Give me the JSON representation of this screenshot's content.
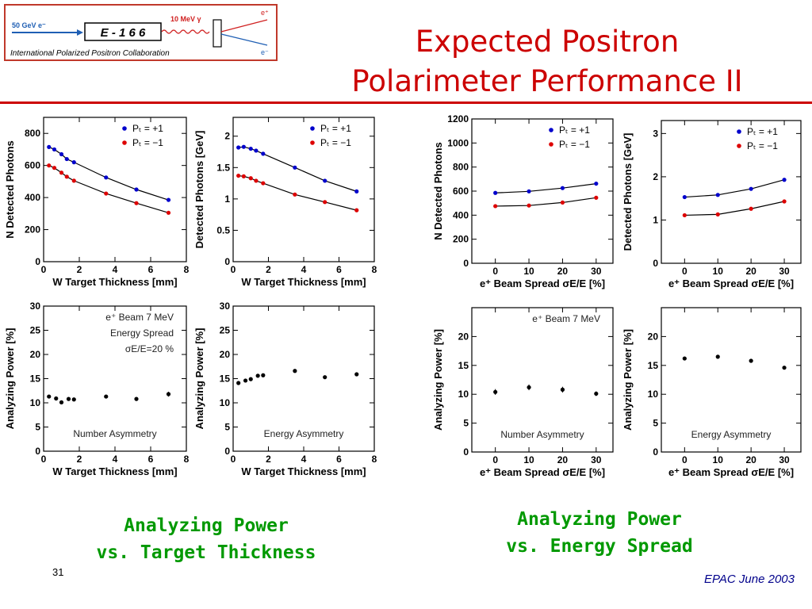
{
  "logo": {
    "beam_label": "50 GeV e⁻",
    "experiment": "E - 1 6 6",
    "gamma_label": "10 MeV γ",
    "e_plus": "e⁺",
    "e_minus": "e⁻",
    "collaboration": "International Polarized Positron Collaboration",
    "border_color": "#c0392b",
    "beam_color": "#1f5fb4",
    "wave_color": "#d02020"
  },
  "title": {
    "line1": "Expected Positron",
    "line2": "Polarimeter Performance II"
  },
  "captions": {
    "left_line1": "Analyzing Power",
    "left_line2": "vs. Target Thickness",
    "right_line1": "Analyzing Power",
    "right_line2": "vs. Energy Spread"
  },
  "footer": {
    "slide_number": "31",
    "reference": "EPAC June 2003"
  },
  "colors": {
    "title": "#cc0000",
    "caption": "#009900",
    "pos_series": "#0000cc",
    "neg_series": "#dd0000"
  },
  "chart_data": [
    {
      "id": "p1",
      "type": "line",
      "xlabel": "W Target Thickness [mm]",
      "ylabel": "N Detected Photons",
      "xlim": [
        0,
        8
      ],
      "ylim": [
        0,
        900
      ],
      "xticks": [
        0,
        2,
        4,
        6,
        8
      ],
      "yticks": [
        0,
        200,
        400,
        600,
        800
      ],
      "legend_position": "top-right",
      "series": [
        {
          "name": "Pₜ = +1",
          "color": "#0000cc",
          "x": [
            0.3,
            0.6,
            1.0,
            1.3,
            1.7,
            3.5,
            5.2,
            7.0
          ],
          "values": [
            715,
            700,
            670,
            640,
            620,
            525,
            450,
            385
          ]
        },
        {
          "name": "Pₜ = −1",
          "color": "#dd0000",
          "x": [
            0.3,
            0.6,
            1.0,
            1.3,
            1.7,
            3.5,
            5.2,
            7.0
          ],
          "values": [
            600,
            585,
            555,
            530,
            505,
            425,
            365,
            305
          ]
        }
      ]
    },
    {
      "id": "p2",
      "type": "line",
      "xlabel": "W Target Thickness [mm]",
      "ylabel": "Detected Photons [GeV]",
      "xlim": [
        0,
        8
      ],
      "ylim": [
        0,
        2.3
      ],
      "xticks": [
        0,
        2,
        4,
        6,
        8
      ],
      "yticks": [
        0,
        0.5,
        1,
        1.5,
        2
      ],
      "legend_position": "top-right",
      "series": [
        {
          "name": "Pₜ = +1",
          "color": "#0000cc",
          "x": [
            0.3,
            0.6,
            1.0,
            1.3,
            1.7,
            3.5,
            5.2,
            7.0
          ],
          "values": [
            1.82,
            1.83,
            1.8,
            1.77,
            1.72,
            1.5,
            1.29,
            1.12
          ]
        },
        {
          "name": "Pₜ = −1",
          "color": "#dd0000",
          "x": [
            0.3,
            0.6,
            1.0,
            1.3,
            1.7,
            3.5,
            5.2,
            7.0
          ],
          "values": [
            1.37,
            1.36,
            1.33,
            1.29,
            1.25,
            1.07,
            0.95,
            0.82
          ]
        }
      ]
    },
    {
      "id": "p3",
      "type": "line",
      "xlabel": "e⁺ Beam Spread σE/E [%]",
      "ylabel": "N Detected Photons",
      "xlim": [
        -7,
        35
      ],
      "ylim": [
        0,
        1200
      ],
      "xticks": [
        0,
        10,
        20,
        30
      ],
      "yticks": [
        0,
        200,
        400,
        600,
        800,
        1000,
        1200
      ],
      "legend_position": "top-right",
      "series": [
        {
          "name": "Pₜ = +1",
          "color": "#0000cc",
          "x": [
            0,
            10,
            20,
            30
          ],
          "values": [
            585,
            598,
            625,
            662
          ]
        },
        {
          "name": "Pₜ = −1",
          "color": "#dd0000",
          "x": [
            0,
            10,
            20,
            30
          ],
          "values": [
            475,
            480,
            505,
            545
          ]
        }
      ]
    },
    {
      "id": "p4",
      "type": "line",
      "xlabel": "e⁺ Beam Spread σE/E [%]",
      "ylabel": "Detected Photons [GeV]",
      "xlim": [
        -7,
        35
      ],
      "ylim": [
        0,
        3.3
      ],
      "xticks": [
        0,
        10,
        20,
        30
      ],
      "yticks": [
        0,
        1,
        2,
        3
      ],
      "legend_position": "top-right",
      "series": [
        {
          "name": "Pₜ = +1",
          "color": "#0000cc",
          "x": [
            0,
            10,
            20,
            30
          ],
          "values": [
            1.53,
            1.58,
            1.72,
            1.93
          ]
        },
        {
          "name": "Pₜ = −1",
          "color": "#dd0000",
          "x": [
            0,
            10,
            20,
            30
          ],
          "values": [
            1.11,
            1.13,
            1.26,
            1.43
          ]
        }
      ]
    },
    {
      "id": "p5",
      "type": "scatter",
      "xlabel": "W Target Thickness [mm]",
      "ylabel": "Analyzing Power [%]",
      "xlim": [
        0,
        8
      ],
      "ylim": [
        0,
        30
      ],
      "xticks": [
        0,
        2,
        4,
        6,
        8
      ],
      "yticks": [
        0,
        5,
        10,
        15,
        20,
        25,
        30
      ],
      "annotations": [
        "e⁺ Beam 7 MeV",
        "Energy Spread",
        "σE/E=20 %"
      ],
      "footnote": "Number Asymmetry",
      "series": [
        {
          "name": "",
          "color": "#000000",
          "x": [
            0.3,
            0.7,
            1.0,
            1.4,
            1.7,
            3.5,
            5.2,
            7.0
          ],
          "values": [
            11.3,
            10.9,
            10.1,
            10.8,
            10.7,
            11.3,
            10.8,
            11.8
          ],
          "errors": [
            0.3,
            0.3,
            0.3,
            0.3,
            0.3,
            0.3,
            0.4,
            0.5
          ]
        }
      ]
    },
    {
      "id": "p6",
      "type": "scatter",
      "xlabel": "W Target Thickness [mm]",
      "ylabel": "Analyzing Power [%]",
      "xlim": [
        0,
        8
      ],
      "ylim": [
        0,
        30
      ],
      "xticks": [
        0,
        2,
        4,
        6,
        8
      ],
      "yticks": [
        0,
        5,
        10,
        15,
        20,
        25,
        30
      ],
      "footnote": "Energy Asymmetry",
      "series": [
        {
          "name": "",
          "color": "#000000",
          "x": [
            0.3,
            0.7,
            1.0,
            1.4,
            1.7,
            3.5,
            5.2,
            7.0
          ],
          "values": [
            14.1,
            14.6,
            14.9,
            15.6,
            15.7,
            16.6,
            15.3,
            15.9
          ],
          "errors": [
            0.2,
            0.2,
            0.2,
            0.2,
            0.2,
            0.2,
            0.2,
            0.3
          ]
        }
      ]
    },
    {
      "id": "p7",
      "type": "scatter",
      "xlabel": "e⁺ Beam Spread σE/E [%]",
      "ylabel": "Analyzing Power [%]",
      "xlim": [
        -7,
        35
      ],
      "ylim": [
        0,
        25
      ],
      "xticks": [
        0,
        10,
        20,
        30
      ],
      "yticks": [
        0,
        5,
        10,
        15,
        20
      ],
      "annotations": [
        "e⁺ Beam 7 MeV"
      ],
      "footnote": "Number Asymmetry",
      "series": [
        {
          "name": "",
          "color": "#000000",
          "x": [
            0,
            10,
            20,
            30
          ],
          "values": [
            10.4,
            11.2,
            10.8,
            10.1
          ],
          "errors": [
            0.5,
            0.5,
            0.5,
            0.4
          ]
        }
      ]
    },
    {
      "id": "p8",
      "type": "scatter",
      "xlabel": "e⁺ Beam Spread σE/E [%]",
      "ylabel": "Analyzing Power [%]",
      "xlim": [
        -7,
        35
      ],
      "ylim": [
        0,
        25
      ],
      "xticks": [
        0,
        10,
        20,
        30
      ],
      "yticks": [
        0,
        5,
        10,
        15,
        20
      ],
      "footnote": "Energy Asymmetry",
      "series": [
        {
          "name": "",
          "color": "#000000",
          "x": [
            0,
            10,
            20,
            30
          ],
          "values": [
            16.2,
            16.5,
            15.8,
            14.6
          ],
          "errors": [
            0.2,
            0.2,
            0.2,
            0.2
          ]
        }
      ]
    }
  ]
}
